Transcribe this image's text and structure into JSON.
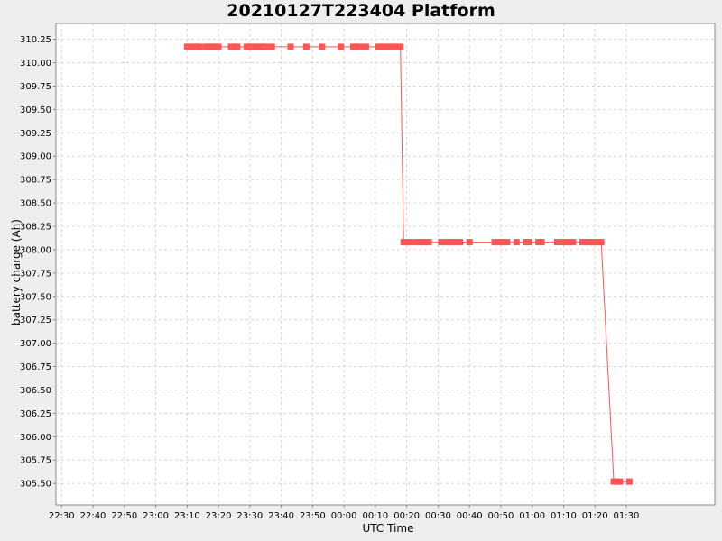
{
  "chart_data": {
    "type": "line",
    "title": "20210127T223404 Platform",
    "xlabel": "UTC Time",
    "ylabel": "battery charge (Ah)",
    "grid": true,
    "legend": "none",
    "series_color": "#ff5555",
    "x_tick_labels": [
      "22:30",
      "22:40",
      "22:50",
      "23:00",
      "23:10",
      "23:20",
      "23:30",
      "23:40",
      "23:50",
      "00:00",
      "00:10",
      "00:20",
      "00:30",
      "00:40",
      "00:50",
      "01:00",
      "01:10",
      "01:20",
      "01:30"
    ],
    "x_tick_minutes": [
      1350,
      1360,
      1370,
      1380,
      1390,
      1400,
      1410,
      1420,
      1430,
      1440,
      1450,
      1460,
      1470,
      1480,
      1490,
      1500,
      1510,
      1520,
      1530
    ],
    "xlim_minutes": [
      1348.2,
      1558.2
    ],
    "y_tick_labels": [
      "305.50",
      "305.75",
      "306.00",
      "306.25",
      "306.50",
      "306.75",
      "307.00",
      "307.25",
      "307.50",
      "307.75",
      "308.00",
      "308.25",
      "308.50",
      "308.75",
      "309.00",
      "309.25",
      "309.50",
      "309.75",
      "310.00",
      "310.25"
    ],
    "y_tick_values": [
      305.5,
      305.75,
      306.0,
      306.25,
      306.5,
      306.75,
      307.0,
      307.25,
      307.5,
      307.75,
      308.0,
      308.25,
      308.5,
      308.75,
      309.0,
      309.25,
      309.5,
      309.75,
      310.0,
      310.25
    ],
    "ylim": [
      305.27,
      310.42
    ],
    "series": [
      {
        "x": [
          "23:10",
          "23:11",
          "23:12",
          "23:13",
          "23:14",
          "23:16",
          "23:17",
          "23:18",
          "23:19",
          "23:20",
          "23:24",
          "23:25",
          "23:26",
          "23:29",
          "23:30",
          "23:31",
          "23:32",
          "23:33",
          "23:34",
          "23:35",
          "23:37",
          "23:43",
          "23:48",
          "23:53",
          "23:59",
          "00:03",
          "00:04",
          "00:05",
          "00:07",
          "00:11",
          "00:12",
          "00:13",
          "00:14",
          "00:15",
          "00:16",
          "00:17",
          "00:18",
          "00:19",
          "00:20",
          "00:21",
          "00:23",
          "00:24",
          "00:25",
          "00:26",
          "00:27",
          "00:31",
          "00:32",
          "00:33",
          "00:34",
          "00:35",
          "00:36",
          "00:37",
          "00:40",
          "00:48",
          "00:49",
          "00:50",
          "00:51",
          "00:52",
          "00:55",
          "00:58",
          "00:59",
          "01:02",
          "01:03",
          "01:08",
          "01:10",
          "01:11",
          "01:12",
          "01:13",
          "01:16",
          "01:17",
          "01:18",
          "01:19",
          "01:20",
          "01:21",
          "01:22",
          "01:26",
          "01:27",
          "01:28",
          "01:31"
        ],
        "y": [
          310.17,
          310.17,
          310.17,
          310.17,
          310.17,
          310.17,
          310.17,
          310.17,
          310.17,
          310.17,
          310.17,
          310.17,
          310.17,
          310.17,
          310.17,
          310.17,
          310.17,
          310.17,
          310.17,
          310.17,
          310.17,
          310.17,
          310.17,
          310.17,
          310.17,
          310.17,
          310.17,
          310.17,
          310.17,
          310.17,
          310.17,
          310.17,
          310.17,
          310.17,
          310.17,
          310.17,
          310.17,
          308.08,
          308.08,
          308.08,
          308.08,
          308.08,
          308.08,
          308.08,
          308.08,
          308.08,
          308.08,
          308.08,
          308.08,
          308.08,
          308.08,
          308.08,
          308.08,
          308.08,
          308.08,
          308.08,
          308.08,
          308.08,
          308.08,
          308.08,
          308.08,
          308.08,
          308.08,
          308.08,
          308.08,
          308.08,
          308.08,
          308.08,
          308.08,
          308.08,
          308.08,
          308.08,
          308.08,
          308.08,
          308.08,
          305.52,
          305.52,
          305.52,
          305.52
        ]
      }
    ]
  }
}
